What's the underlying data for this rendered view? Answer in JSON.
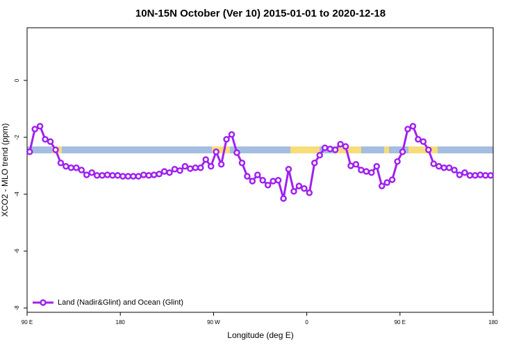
{
  "chart_data": {
    "type": "line",
    "title": "10N-15N October (Ver 10)   2015-01-01 to 2020-12-18",
    "x_label": "Longitude (deg E)",
    "y_label": "XCO2 - MLO trend (ppm)",
    "xlim": [
      90,
      540
    ],
    "ylim": [
      -8.15,
      1.85
    ],
    "xticks": [
      {
        "value": 90,
        "label": "90 E"
      },
      {
        "value": 180,
        "label": "180"
      },
      {
        "value": 270,
        "label": "90 W"
      },
      {
        "value": 360,
        "label": "0"
      },
      {
        "value": 450,
        "label": "90 E"
      },
      {
        "value": 540,
        "label": "180"
      }
    ],
    "yticks": [
      -8,
      -6,
      -4,
      -2,
      0
    ],
    "legend": "bottom-left",
    "x": [
      92.5,
      97.5,
      102.5,
      107.5,
      112.5,
      117.5,
      122.5,
      127.5,
      132.5,
      137.5,
      142.5,
      147.5,
      152.5,
      157.5,
      162.5,
      167.5,
      172.5,
      177.5,
      182.5,
      187.5,
      192.5,
      197.5,
      202.5,
      207.5,
      212.5,
      217.5,
      222.5,
      227.5,
      232.5,
      237.5,
      242.5,
      247.5,
      252.5,
      257.5,
      262.5,
      267.5,
      272.5,
      277.5,
      282.5,
      287.5,
      292.5,
      297.5,
      302.5,
      307.5,
      312.5,
      317.5,
      322.5,
      327.5,
      332.5,
      337.5,
      342.5,
      347.5,
      352.5,
      357.5,
      362.5,
      367.5,
      372.5,
      377.5,
      382.5,
      387.5,
      392.5,
      397.5,
      402.5,
      407.5,
      412.5,
      417.5,
      422.5,
      427.5,
      432.5,
      437.5,
      442.5,
      447.5,
      452.5,
      457.5,
      462.5,
      467.5,
      472.5,
      477.5,
      482.5,
      487.5,
      492.5,
      497.5,
      502.5,
      507.5,
      512.5,
      517.5,
      522.5,
      527.5,
      532.5,
      537.5
    ],
    "series": [
      {
        "name": "Land (Nadir&Glint) and Ocean (Glint)",
        "color": "#a020f0",
        "values": [
          -2.51,
          -1.71,
          -1.61,
          -2.07,
          -2.15,
          -2.44,
          -2.9,
          -3.02,
          -3.07,
          -3.07,
          -3.15,
          -3.32,
          -3.24,
          -3.34,
          -3.34,
          -3.32,
          -3.34,
          -3.34,
          -3.37,
          -3.37,
          -3.37,
          -3.37,
          -3.32,
          -3.34,
          -3.32,
          -3.29,
          -3.2,
          -3.24,
          -3.12,
          -3.17,
          -3.02,
          -3.1,
          -3.07,
          -3.07,
          -2.78,
          -3.02,
          -2.51,
          -2.95,
          -2.07,
          -1.9,
          -2.54,
          -2.9,
          -3.37,
          -3.54,
          -3.32,
          -3.51,
          -3.68,
          -3.54,
          -3.51,
          -4.15,
          -3.12,
          -3.9,
          -3.71,
          -3.8,
          -3.95,
          -2.9,
          -2.63,
          -2.37,
          -2.41,
          -2.44,
          -2.24,
          -2.32,
          -3.0,
          -2.95,
          -3.15,
          -3.2,
          -3.24,
          -3.02,
          -3.71,
          -3.59,
          -3.49,
          -2.85,
          -2.51,
          -1.71,
          -1.61,
          -2.07,
          -2.15,
          -2.44,
          -2.93,
          -3.02,
          -3.07,
          -3.07,
          -3.15,
          -3.32,
          -3.24,
          -3.34,
          -3.34,
          -3.32,
          -3.34,
          -3.34
        ]
      }
    ]
  }
}
